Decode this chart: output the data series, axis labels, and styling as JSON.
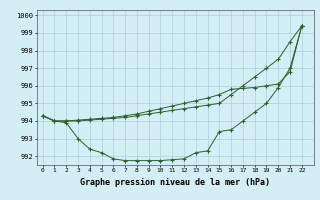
{
  "title": "Graphe pression niveau de la mer (hPa)",
  "ylabel_ticks": [
    992,
    993,
    994,
    995,
    996,
    997,
    998,
    999,
    1000
  ],
  "xlim": [
    -0.5,
    23
  ],
  "ylim": [
    991.5,
    1000.3
  ],
  "bg_color": "#d4eef5",
  "grid_color": "#b0cfd8",
  "line_color": "#2e5e2e",
  "line1_x": [
    0,
    1,
    2,
    3,
    4,
    5,
    6,
    7,
    8,
    9,
    10,
    11,
    12,
    13,
    14,
    15,
    16,
    17,
    18,
    19,
    20,
    21,
    22
  ],
  "line1_y": [
    994.3,
    994.0,
    993.9,
    993.0,
    992.4,
    992.2,
    991.85,
    991.75,
    991.75,
    991.75,
    991.75,
    991.8,
    991.85,
    992.2,
    992.3,
    993.4,
    993.5,
    994.0,
    994.5,
    995.0,
    995.9,
    997.0,
    999.4
  ],
  "line2_x": [
    0,
    1,
    2,
    3,
    4,
    5,
    6,
    7,
    8,
    9,
    10,
    11,
    12,
    13,
    14,
    15,
    16,
    17,
    18,
    19,
    20,
    21,
    22
  ],
  "line2_y": [
    994.3,
    994.0,
    994.0,
    994.05,
    994.1,
    994.15,
    994.2,
    994.3,
    994.4,
    994.55,
    994.7,
    994.85,
    995.0,
    995.15,
    995.3,
    995.5,
    995.8,
    995.85,
    995.9,
    996.0,
    996.1,
    996.8,
    999.4
  ],
  "line3_x": [
    0,
    1,
    2,
    3,
    4,
    5,
    6,
    7,
    8,
    9,
    10,
    11,
    12,
    13,
    14,
    15,
    16,
    17,
    18,
    19,
    20,
    21,
    22
  ],
  "line3_y": [
    994.3,
    994.0,
    994.0,
    994.0,
    994.05,
    994.1,
    994.15,
    994.2,
    994.3,
    994.4,
    994.5,
    994.6,
    994.7,
    994.8,
    994.9,
    995.0,
    995.5,
    996.0,
    996.5,
    997.0,
    997.5,
    998.5,
    999.4
  ]
}
